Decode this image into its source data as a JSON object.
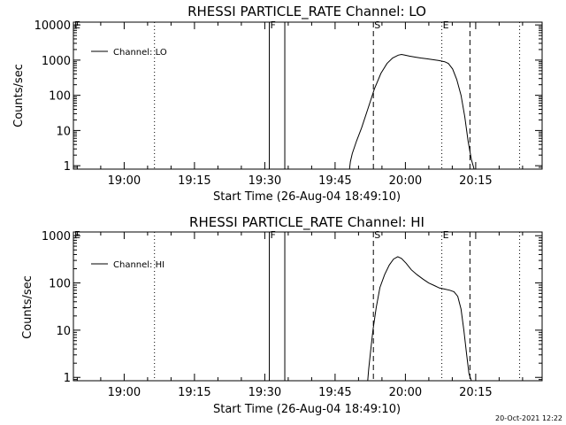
{
  "footer": {
    "timestamp": "20-Oct-2021 12:22"
  },
  "chart_data": [
    {
      "type": "line",
      "title": "RHESSI PARTICLE_RATE Channel: LO",
      "xlabel": "Start Time (26-Aug-04 18:49:10)",
      "ylabel": "Counts/sec",
      "yscale": "log",
      "ylim": [
        0.8,
        12000
      ],
      "xlim_minutes": [
        0,
        100
      ],
      "x_ticks": [
        {
          "label": "19:00",
          "value": 10.83
        },
        {
          "label": "19:15",
          "value": 25.83
        },
        {
          "label": "19:30",
          "value": 40.83
        },
        {
          "label": "19:45",
          "value": 55.83
        },
        {
          "label": "20:00",
          "value": 70.83
        },
        {
          "label": "20:15",
          "value": 85.83
        }
      ],
      "y_ticks": [
        {
          "label": "1",
          "value": 1
        },
        {
          "label": "10",
          "value": 10
        },
        {
          "label": "100",
          "value": 100
        },
        {
          "label": "1000",
          "value": 1000
        },
        {
          "label": "10000",
          "value": 10000
        }
      ],
      "legend": {
        "label": "Channel: LO",
        "position": "top-left"
      },
      "markers": [
        {
          "label": "E",
          "value": 0,
          "style": "none"
        },
        {
          "label": "",
          "value": 17.3,
          "style": "dotted"
        },
        {
          "label": "F",
          "value": 41.8,
          "style": "solid"
        },
        {
          "label": "",
          "value": 45.1,
          "style": "solid"
        },
        {
          "label": "S",
          "value": 64.0,
          "style": "dashed"
        },
        {
          "label": "E",
          "value": 78.6,
          "style": "dotted"
        },
        {
          "label": "",
          "value": 84.6,
          "style": "dashed"
        },
        {
          "label": "",
          "value": 95.2,
          "style": "dotted"
        }
      ],
      "series": [
        {
          "name": "Channel: LO",
          "x": [
            58.9,
            59.1,
            59.5,
            60.4,
            61.5,
            62.8,
            64.2,
            65.6,
            66.9,
            68.1,
            69.3,
            70.0,
            70.6,
            71.7,
            72.9,
            74.1,
            75.4,
            76.7,
            78.0,
            79.2,
            80.0,
            80.9,
            81.8,
            82.7,
            83.5,
            84.2,
            84.9,
            85.5
          ],
          "y": [
            0.8,
            1.3,
            2.2,
            5,
            12,
            40,
            150,
            420,
            800,
            1150,
            1380,
            1450,
            1400,
            1300,
            1220,
            1150,
            1090,
            1030,
            970,
            900,
            800,
            560,
            280,
            100,
            25,
            5,
            1.5,
            0.8
          ]
        }
      ]
    },
    {
      "type": "line",
      "title": "RHESSI PARTICLE_RATE Channel: HI",
      "xlabel": "Start Time (26-Aug-04 18:49:10)",
      "ylabel": "Counts/sec",
      "yscale": "log",
      "ylim": [
        0.85,
        1200
      ],
      "xlim_minutes": [
        0,
        100
      ],
      "x_ticks": [
        {
          "label": "19:00",
          "value": 10.83
        },
        {
          "label": "19:15",
          "value": 25.83
        },
        {
          "label": "19:30",
          "value": 40.83
        },
        {
          "label": "19:45",
          "value": 55.83
        },
        {
          "label": "20:00",
          "value": 70.83
        },
        {
          "label": "20:15",
          "value": 85.83
        }
      ],
      "y_ticks": [
        {
          "label": "1",
          "value": 1
        },
        {
          "label": "10",
          "value": 10
        },
        {
          "label": "100",
          "value": 100
        },
        {
          "label": "1000",
          "value": 1000
        }
      ],
      "legend": {
        "label": "Channel: HI",
        "position": "top-left"
      },
      "markers": [
        {
          "label": "E",
          "value": 0,
          "style": "none"
        },
        {
          "label": "",
          "value": 17.3,
          "style": "dotted"
        },
        {
          "label": "F",
          "value": 41.8,
          "style": "solid"
        },
        {
          "label": "",
          "value": 45.1,
          "style": "solid"
        },
        {
          "label": "S",
          "value": 64.0,
          "style": "dashed"
        },
        {
          "label": "E",
          "value": 78.6,
          "style": "dotted"
        },
        {
          "label": "",
          "value": 84.6,
          "style": "dashed"
        },
        {
          "label": "",
          "value": 95.2,
          "style": "dotted"
        }
      ],
      "series": [
        {
          "name": "Channel: HI",
          "x": [
            62.8,
            63.0,
            63.4,
            63.9,
            64.6,
            65.4,
            66.4,
            67.4,
            68.3,
            69.2,
            70.0,
            71.0,
            72.1,
            73.3,
            74.6,
            75.8,
            77.0,
            78.1,
            79.2,
            80.3,
            81.2,
            82.0,
            82.7,
            83.3,
            83.9,
            84.4,
            84.9
          ],
          "y": [
            0.85,
            1.5,
            3.5,
            10,
            30,
            80,
            150,
            240,
            320,
            360,
            330,
            260,
            190,
            150,
            120,
            100,
            88,
            78,
            74,
            70,
            65,
            52,
            28,
            10,
            3,
            1.2,
            0.85
          ]
        }
      ]
    }
  ]
}
